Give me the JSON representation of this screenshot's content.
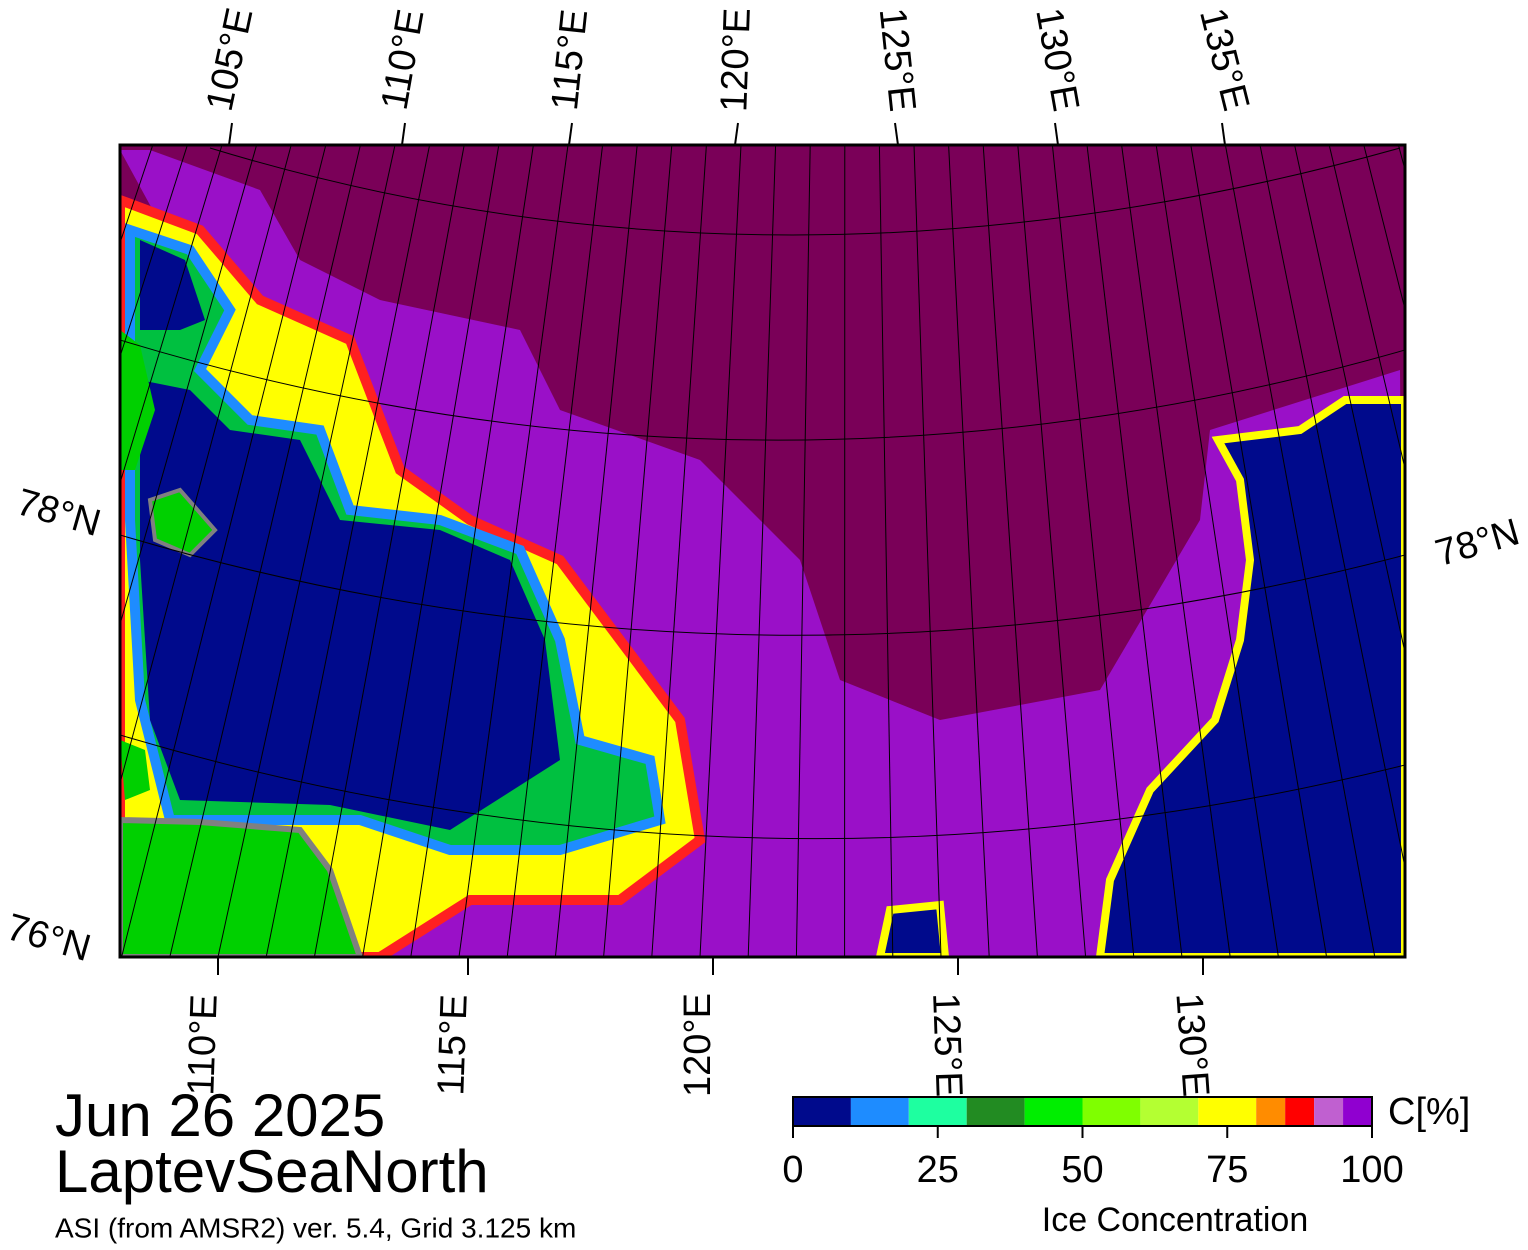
{
  "map": {
    "date": "Jun 26 2025",
    "region": "LaptevSeaNorth",
    "source": "ASI (from AMSR2) ver. 5.4,  Grid 3.125 km",
    "top_longitude_labels": [
      "105°E",
      "110°E",
      "115°E",
      "120°E",
      "125°E",
      "130°E",
      "135°E"
    ],
    "bottom_longitude_labels": [
      "110°E",
      "115°E",
      "120°E",
      "125°E",
      "130°E"
    ],
    "left_latitude_labels": [
      "78°N",
      "76°N"
    ],
    "right_latitude_labels": [
      "78°N"
    ]
  },
  "colorbar": {
    "label": "Ice Concentration",
    "unit": "C[%]",
    "range": [
      0,
      100
    ],
    "ticks": [
      0,
      25,
      50,
      75,
      100
    ],
    "bounds": [
      0,
      10,
      20,
      30,
      40,
      50,
      60,
      70,
      80,
      85,
      90,
      95,
      100
    ],
    "colors": [
      "#000a8c",
      "#1e8cff",
      "#1effa0",
      "#228b22",
      "#00ee00",
      "#7fff00",
      "#b4ff32",
      "#ffff00",
      "#ff8c00",
      "#ff0000",
      "#c060d0",
      "#9000d0"
    ]
  }
}
